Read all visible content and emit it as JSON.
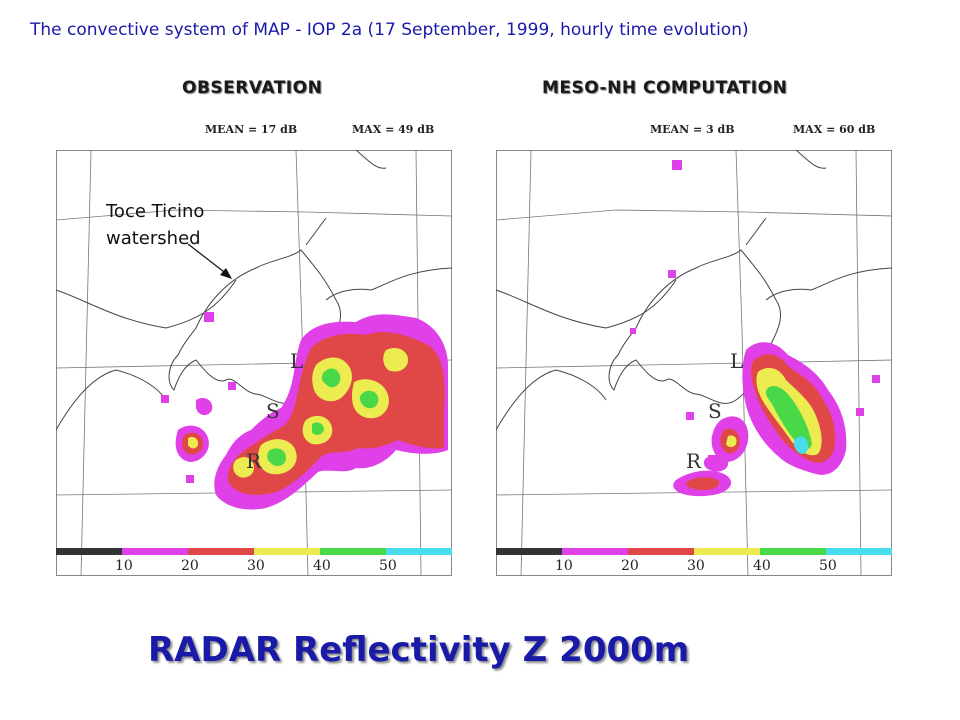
{
  "header": {
    "title": "The convective system of MAP - IOP 2a (17 September, 1999, hourly time evolution)"
  },
  "panels": {
    "observation": {
      "heading": "OBSERVATION",
      "mean_text": "MEAN =   17  dB",
      "max_text": "MAX =   49  dB",
      "annotation_line1": "Toce Ticino",
      "annotation_line2": "watershed"
    },
    "computation": {
      "heading": "MESO-NH COMPUTATION",
      "mean_text": "MEAN =    3  dB",
      "max_text": "MAX =   60  dB"
    }
  },
  "sites": {
    "L": "L",
    "S": "S",
    "R": "R"
  },
  "color_scale": {
    "labels": [
      "10",
      "20",
      "30",
      "40",
      "50"
    ],
    "colors": [
      "#333333",
      "#e040e8",
      "#e04848",
      "#ecec50",
      "#48d848",
      "#48dcec"
    ]
  },
  "footer": {
    "title": "RADAR Reflectivity Z 2000m"
  }
}
